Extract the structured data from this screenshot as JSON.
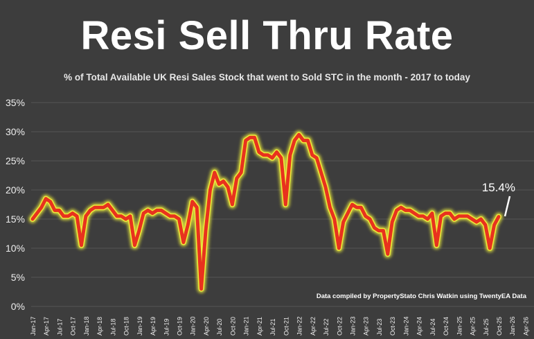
{
  "title": "Resi Sell Thru Rate",
  "subtitle": "% of Total Available UK Resi Sales Stock that went to Sold STC in the month - 2017 to today",
  "credit": "Data compiled by PropertyStato Chris Watkin using TwentyEA Data",
  "callout": "15.4%",
  "colors": {
    "background": "#3d3d3d",
    "line": "#e8321e",
    "glow": "#f2f23a",
    "grid": "#555555",
    "text": "#ffffff"
  },
  "chart_data": {
    "type": "line",
    "title": "Resi Sell Thru Rate",
    "subtitle": "% of Total Available UK Resi Sales Stock that went to Sold STC in the month - 2017 to today",
    "ylim": [
      0,
      35
    ],
    "y_ticks": [
      "0%",
      "5%",
      "10%",
      "15%",
      "20%",
      "25%",
      "30%",
      "35%"
    ],
    "y_tick_values": [
      0,
      5,
      10,
      15,
      20,
      25,
      30,
      35
    ],
    "x_tick_labels": [
      "Jan-17",
      "Apr-17",
      "Jul-17",
      "Oct-17",
      "Jan-18",
      "Apr-18",
      "Jul-18",
      "Oct-18",
      "Jan-19",
      "Apr-19",
      "Jul-19",
      "Oct-19",
      "Jan-20",
      "Apr-20",
      "Jul-20",
      "Oct-20",
      "Jan-21",
      "Apr-21",
      "Jul-21",
      "Oct-21",
      "Jan-22",
      "Apr-22",
      "Jul-22",
      "Oct-22",
      "Jan-23",
      "Apr-23",
      "Jul-23",
      "Oct-23",
      "Jan-24",
      "Apr-24",
      "Jul-24",
      "Oct-24",
      "Jan-25",
      "Apr-25",
      "Jul-25",
      "Oct-25",
      "Jan-26",
      "Apr-26"
    ],
    "grid": true,
    "legend": "none",
    "series": [
      {
        "values": [
          15.0,
          16.0,
          17.0,
          18.5,
          18.0,
          16.5,
          16.5,
          15.5,
          15.5,
          16.0,
          15.5,
          10.5,
          15.5,
          16.5,
          17.0,
          17.0,
          17.0,
          17.5,
          16.5,
          15.5,
          15.5,
          15.0,
          15.5,
          10.5,
          13.0,
          16.0,
          16.5,
          16.0,
          16.5,
          16.5,
          16.0,
          15.5,
          15.5,
          15.0,
          11.0,
          14.0,
          18.0,
          17.0,
          3.0,
          13.0,
          20.0,
          23.0,
          21.0,
          21.5,
          20.5,
          17.5,
          22.0,
          23.0,
          28.5,
          29.0,
          29.0,
          26.5,
          26.0,
          26.0,
          25.5,
          26.5,
          25.5,
          17.5,
          26.0,
          28.5,
          29.5,
          28.5,
          28.5,
          26.0,
          25.5,
          23.0,
          20.5,
          17.0,
          15.0,
          10.0,
          14.5,
          16.0,
          17.5,
          17.0,
          17.0,
          15.5,
          15.0,
          13.5,
          13.0,
          13.0,
          9.0,
          14.5,
          16.5,
          17.0,
          16.5,
          16.5,
          16.0,
          15.5,
          15.5,
          15.0,
          16.0,
          10.5,
          15.5,
          16.0,
          16.0,
          15.0,
          15.5,
          15.5,
          15.5,
          15.0,
          14.5,
          15.0,
          14.0,
          10.0,
          14.0,
          15.4
        ]
      }
    ]
  }
}
